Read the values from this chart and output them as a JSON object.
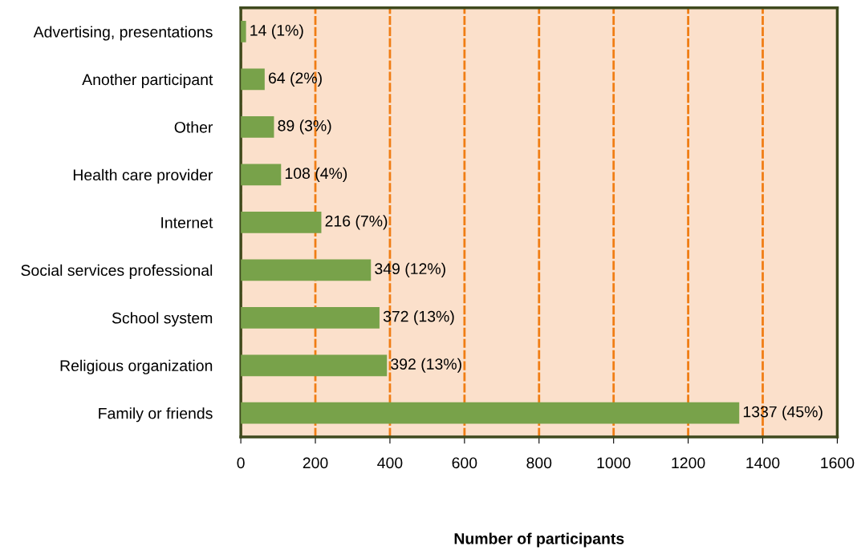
{
  "chart_data": {
    "type": "bar",
    "orientation": "horizontal",
    "xlabel": "Number of participants",
    "categories": [
      "Advertising, presentations",
      "Another participant",
      "Other",
      "Health care provider",
      "Internet",
      "Social services professional",
      "School system",
      "Religious organization",
      "Family or friends"
    ],
    "values": [
      14,
      64,
      89,
      108,
      216,
      349,
      372,
      392,
      1337
    ],
    "value_labels": [
      "14 (1%)",
      "64 (2%)",
      "89 (3%)",
      "108 (4%)",
      "216 (7%)",
      "349 (12%)",
      "372 (13%)",
      "392 (13%)",
      "1337 (45%)"
    ],
    "color": "#78a24a",
    "xlim": [
      0,
      1600
    ],
    "xticks": [
      0,
      200,
      400,
      600,
      800,
      1000,
      1200,
      1400,
      1600
    ],
    "grid": "x",
    "legend": false
  }
}
